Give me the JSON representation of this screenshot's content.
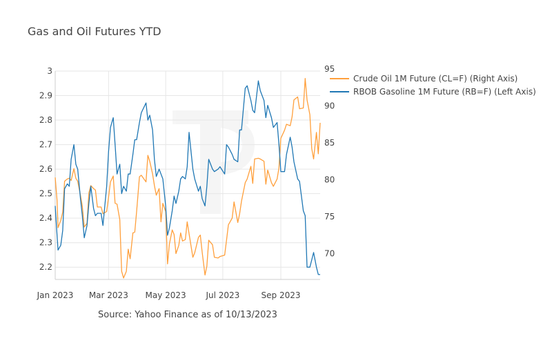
{
  "chart_data": {
    "type": "line",
    "title": "Gas and Oil Futures YTD",
    "source": "Source: Yahoo Finance as of 10/13/2023",
    "x_range": [
      "2023-01-03",
      "2023-10-13"
    ],
    "x_ticks": [
      {
        "date": "2023-01-03",
        "label": "Jan 2023"
      },
      {
        "date": "2023-03-01",
        "label": "Mar 2023"
      },
      {
        "date": "2023-05-01",
        "label": "May 2023"
      },
      {
        "date": "2023-07-01",
        "label": "Jul 2023"
      },
      {
        "date": "2023-09-01",
        "label": "Sep 2023"
      }
    ],
    "y_left": {
      "range": [
        2.15,
        3.0
      ],
      "ticks": [
        2.2,
        2.3,
        2.4,
        2.5,
        2.6,
        2.7,
        2.8,
        2.9,
        3
      ]
    },
    "y_right": {
      "range": [
        66.5,
        94.7
      ],
      "ticks": [
        70,
        75,
        80,
        85,
        90,
        95
      ]
    },
    "grid": true,
    "legend_position": "right",
    "series": [
      {
        "name": "Crude Oil 1M Future (CL=F) (Right Axis)",
        "axis": "right",
        "color": "#ff9f3b",
        "points": [
          [
            "2023-01-03",
            80.3
          ],
          [
            "2023-01-05",
            77.2
          ],
          [
            "2023-01-06",
            73.5
          ],
          [
            "2023-01-09",
            74.5
          ],
          [
            "2023-01-11",
            75.6
          ],
          [
            "2023-01-13",
            79.8
          ],
          [
            "2023-01-16",
            80.1
          ],
          [
            "2023-01-18",
            80.2
          ],
          [
            "2023-01-20",
            79.9
          ],
          [
            "2023-01-23",
            81.5
          ],
          [
            "2023-01-25",
            80.2
          ],
          [
            "2023-01-27",
            79.8
          ],
          [
            "2023-01-30",
            77.9
          ],
          [
            "2023-02-01",
            76.4
          ],
          [
            "2023-02-03",
            73.6
          ],
          [
            "2023-02-06",
            74.1
          ],
          [
            "2023-02-08",
            78.2
          ],
          [
            "2023-02-10",
            79.2
          ],
          [
            "2023-02-13",
            78.8
          ],
          [
            "2023-02-15",
            78.6
          ],
          [
            "2023-02-17",
            76.3
          ],
          [
            "2023-02-21",
            76.3
          ],
          [
            "2023-02-23",
            75.4
          ],
          [
            "2023-02-27",
            75.7
          ],
          [
            "2023-03-01",
            77.6
          ],
          [
            "2023-03-03",
            79.7
          ],
          [
            "2023-03-06",
            80.5
          ],
          [
            "2023-03-08",
            76.8
          ],
          [
            "2023-03-10",
            76.7
          ],
          [
            "2023-03-13",
            74.6
          ],
          [
            "2023-03-15",
            67.6
          ],
          [
            "2023-03-17",
            66.7
          ],
          [
            "2023-03-20",
            67.6
          ],
          [
            "2023-03-22",
            70.6
          ],
          [
            "2023-03-24",
            69.3
          ],
          [
            "2023-03-27",
            72.8
          ],
          [
            "2023-03-29",
            72.9
          ],
          [
            "2023-03-31",
            75.7
          ],
          [
            "2023-04-03",
            80.4
          ],
          [
            "2023-04-05",
            80.6
          ],
          [
            "2023-04-10",
            79.7
          ],
          [
            "2023-04-12",
            83.3
          ],
          [
            "2023-04-14",
            82.5
          ],
          [
            "2023-04-17",
            80.8
          ],
          [
            "2023-04-19",
            79.2
          ],
          [
            "2023-04-21",
            77.9
          ],
          [
            "2023-04-24",
            78.8
          ],
          [
            "2023-04-26",
            74.3
          ],
          [
            "2023-04-28",
            76.8
          ],
          [
            "2023-05-01",
            75.7
          ],
          [
            "2023-05-03",
            68.6
          ],
          [
            "2023-05-05",
            71.3
          ],
          [
            "2023-05-08",
            73.2
          ],
          [
            "2023-05-10",
            72.6
          ],
          [
            "2023-05-12",
            70.0
          ],
          [
            "2023-05-15",
            71.1
          ],
          [
            "2023-05-17",
            72.8
          ],
          [
            "2023-05-19",
            71.7
          ],
          [
            "2023-05-22",
            71.9
          ],
          [
            "2023-05-24",
            74.3
          ],
          [
            "2023-05-26",
            72.7
          ],
          [
            "2023-05-30",
            69.5
          ],
          [
            "2023-06-01",
            70.1
          ],
          [
            "2023-06-05",
            72.2
          ],
          [
            "2023-06-07",
            72.5
          ],
          [
            "2023-06-09",
            70.2
          ],
          [
            "2023-06-12",
            67.1
          ],
          [
            "2023-06-14",
            68.3
          ],
          [
            "2023-06-16",
            71.8
          ],
          [
            "2023-06-20",
            71.2
          ],
          [
            "2023-06-22",
            69.5
          ],
          [
            "2023-06-26",
            69.4
          ],
          [
            "2023-06-28",
            69.6
          ],
          [
            "2023-07-03",
            69.8
          ],
          [
            "2023-07-05",
            71.8
          ],
          [
            "2023-07-07",
            73.9
          ],
          [
            "2023-07-11",
            74.8
          ],
          [
            "2023-07-13",
            77.0
          ],
          [
            "2023-07-17",
            74.2
          ],
          [
            "2023-07-19",
            75.4
          ],
          [
            "2023-07-21",
            77.1
          ],
          [
            "2023-07-25",
            79.6
          ],
          [
            "2023-07-27",
            80.1
          ],
          [
            "2023-07-31",
            81.8
          ],
          [
            "2023-08-02",
            79.5
          ],
          [
            "2023-08-04",
            82.8
          ],
          [
            "2023-08-08",
            82.9
          ],
          [
            "2023-08-10",
            82.8
          ],
          [
            "2023-08-14",
            82.5
          ],
          [
            "2023-08-16",
            79.4
          ],
          [
            "2023-08-18",
            81.3
          ],
          [
            "2023-08-22",
            79.6
          ],
          [
            "2023-08-24",
            79.1
          ],
          [
            "2023-08-28",
            80.1
          ],
          [
            "2023-08-30",
            81.6
          ],
          [
            "2023-09-01",
            85.6
          ],
          [
            "2023-09-05",
            86.7
          ],
          [
            "2023-09-07",
            87.5
          ],
          [
            "2023-09-11",
            87.3
          ],
          [
            "2023-09-13",
            88.5
          ],
          [
            "2023-09-15",
            90.8
          ],
          [
            "2023-09-19",
            91.2
          ],
          [
            "2023-09-21",
            89.6
          ],
          [
            "2023-09-25",
            89.7
          ],
          [
            "2023-09-27",
            93.7
          ],
          [
            "2023-09-29",
            90.8
          ],
          [
            "2023-10-02",
            88.8
          ],
          [
            "2023-10-04",
            84.2
          ],
          [
            "2023-10-06",
            82.8
          ],
          [
            "2023-10-09",
            86.4
          ],
          [
            "2023-10-11",
            83.5
          ],
          [
            "2023-10-13",
            87.7
          ]
        ]
      },
      {
        "name": "RBOB Gasoline 1M Future (RB=F) (Left Axis)",
        "axis": "left",
        "color": "#1f77b4",
        "points": [
          [
            "2023-01-03",
            2.45
          ],
          [
            "2023-01-05",
            2.33
          ],
          [
            "2023-01-06",
            2.27
          ],
          [
            "2023-01-09",
            2.29
          ],
          [
            "2023-01-11",
            2.35
          ],
          [
            "2023-01-13",
            2.52
          ],
          [
            "2023-01-16",
            2.54
          ],
          [
            "2023-01-18",
            2.53
          ],
          [
            "2023-01-20",
            2.64
          ],
          [
            "2023-01-23",
            2.7
          ],
          [
            "2023-01-25",
            2.62
          ],
          [
            "2023-01-27",
            2.6
          ],
          [
            "2023-01-30",
            2.48
          ],
          [
            "2023-02-01",
            2.41
          ],
          [
            "2023-02-03",
            2.32
          ],
          [
            "2023-02-06",
            2.37
          ],
          [
            "2023-02-08",
            2.46
          ],
          [
            "2023-02-10",
            2.53
          ],
          [
            "2023-02-13",
            2.44
          ],
          [
            "2023-02-15",
            2.41
          ],
          [
            "2023-02-17",
            2.42
          ],
          [
            "2023-02-21",
            2.42
          ],
          [
            "2023-02-23",
            2.37
          ],
          [
            "2023-02-27",
            2.53
          ],
          [
            "2023-03-01",
            2.67
          ],
          [
            "2023-03-03",
            2.77
          ],
          [
            "2023-03-06",
            2.81
          ],
          [
            "2023-03-08",
            2.7
          ],
          [
            "2023-03-10",
            2.58
          ],
          [
            "2023-03-13",
            2.62
          ],
          [
            "2023-03-15",
            2.5
          ],
          [
            "2023-03-17",
            2.53
          ],
          [
            "2023-03-20",
            2.51
          ],
          [
            "2023-03-22",
            2.58
          ],
          [
            "2023-03-24",
            2.58
          ],
          [
            "2023-03-27",
            2.66
          ],
          [
            "2023-03-29",
            2.72
          ],
          [
            "2023-03-31",
            2.72
          ],
          [
            "2023-04-03",
            2.79
          ],
          [
            "2023-04-05",
            2.83
          ],
          [
            "2023-04-10",
            2.87
          ],
          [
            "2023-04-12",
            2.8
          ],
          [
            "2023-04-14",
            2.82
          ],
          [
            "2023-04-17",
            2.76
          ],
          [
            "2023-04-19",
            2.64
          ],
          [
            "2023-04-21",
            2.57
          ],
          [
            "2023-04-24",
            2.6
          ],
          [
            "2023-04-26",
            2.58
          ],
          [
            "2023-04-28",
            2.56
          ],
          [
            "2023-05-01",
            2.45
          ],
          [
            "2023-05-03",
            2.33
          ],
          [
            "2023-05-05",
            2.36
          ],
          [
            "2023-05-08",
            2.43
          ],
          [
            "2023-05-10",
            2.49
          ],
          [
            "2023-05-12",
            2.46
          ],
          [
            "2023-05-15",
            2.51
          ],
          [
            "2023-05-17",
            2.56
          ],
          [
            "2023-05-19",
            2.57
          ],
          [
            "2023-05-22",
            2.56
          ],
          [
            "2023-05-24",
            2.61
          ],
          [
            "2023-05-26",
            2.75
          ],
          [
            "2023-05-30",
            2.6
          ],
          [
            "2023-06-01",
            2.56
          ],
          [
            "2023-06-05",
            2.51
          ],
          [
            "2023-06-07",
            2.53
          ],
          [
            "2023-06-09",
            2.48
          ],
          [
            "2023-06-12",
            2.45
          ],
          [
            "2023-06-14",
            2.53
          ],
          [
            "2023-06-16",
            2.64
          ],
          [
            "2023-06-20",
            2.6
          ],
          [
            "2023-06-22",
            2.59
          ],
          [
            "2023-06-26",
            2.6
          ],
          [
            "2023-06-28",
            2.61
          ],
          [
            "2023-07-03",
            2.58
          ],
          [
            "2023-07-05",
            2.7
          ],
          [
            "2023-07-07",
            2.69
          ],
          [
            "2023-07-11",
            2.66
          ],
          [
            "2023-07-13",
            2.64
          ],
          [
            "2023-07-17",
            2.63
          ],
          [
            "2023-07-19",
            2.76
          ],
          [
            "2023-07-21",
            2.76
          ],
          [
            "2023-07-25",
            2.93
          ],
          [
            "2023-07-27",
            2.94
          ],
          [
            "2023-07-31",
            2.88
          ],
          [
            "2023-08-02",
            2.84
          ],
          [
            "2023-08-04",
            2.83
          ],
          [
            "2023-08-08",
            2.96
          ],
          [
            "2023-08-10",
            2.92
          ],
          [
            "2023-08-14",
            2.88
          ],
          [
            "2023-08-16",
            2.81
          ],
          [
            "2023-08-18",
            2.86
          ],
          [
            "2023-08-22",
            2.81
          ],
          [
            "2023-08-24",
            2.77
          ],
          [
            "2023-08-28",
            2.79
          ],
          [
            "2023-08-30",
            2.7
          ],
          [
            "2023-09-01",
            2.59
          ],
          [
            "2023-09-05",
            2.59
          ],
          [
            "2023-09-07",
            2.66
          ],
          [
            "2023-09-11",
            2.73
          ],
          [
            "2023-09-13",
            2.69
          ],
          [
            "2023-09-15",
            2.63
          ],
          [
            "2023-09-19",
            2.56
          ],
          [
            "2023-09-21",
            2.55
          ],
          [
            "2023-09-25",
            2.43
          ],
          [
            "2023-09-27",
            2.41
          ],
          [
            "2023-09-29",
            2.2
          ],
          [
            "2023-10-02",
            2.2
          ],
          [
            "2023-10-04",
            2.23
          ],
          [
            "2023-10-06",
            2.26
          ],
          [
            "2023-10-09",
            2.2
          ],
          [
            "2023-10-11",
            2.17
          ],
          [
            "2023-10-13",
            2.17
          ]
        ]
      }
    ]
  }
}
